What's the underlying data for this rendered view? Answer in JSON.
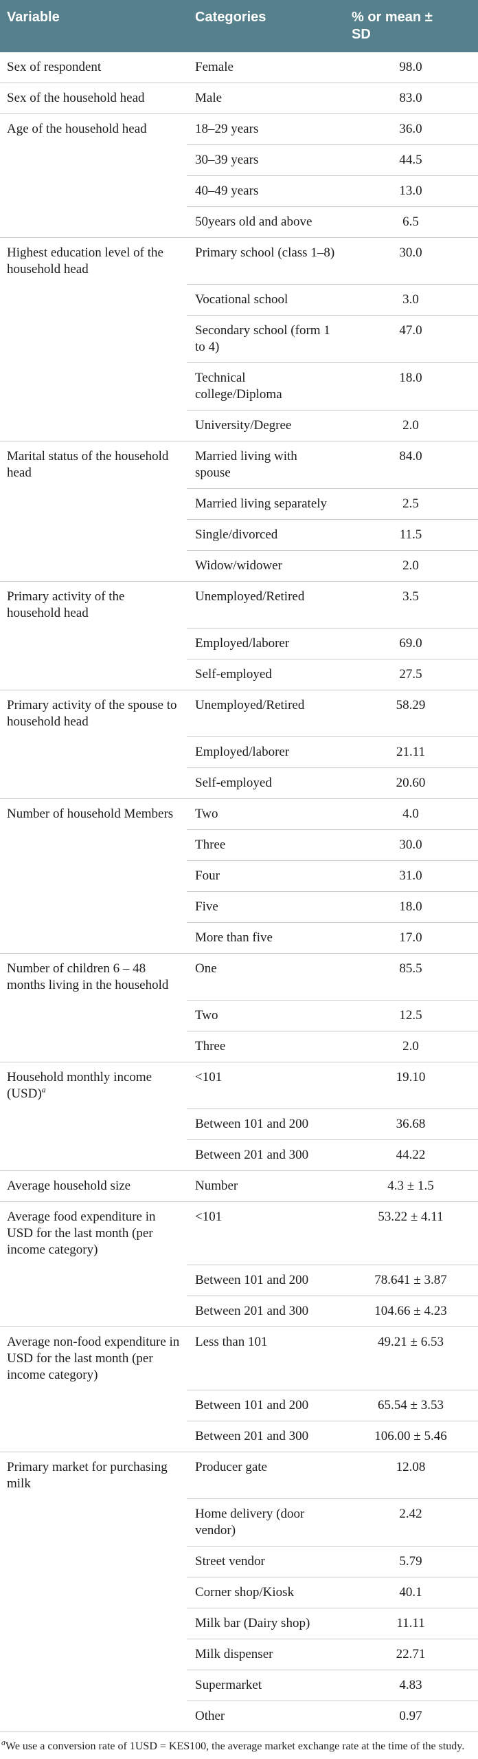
{
  "theme": {
    "header_bg": "#55808c",
    "header_text": "#ffffff",
    "border_color": "#c9c9c9",
    "body_text": "#1c1c1c"
  },
  "table": {
    "columns": [
      "Variable",
      "Categories",
      "% or mean ± SD"
    ],
    "groups": [
      {
        "variable": "Sex of respondent",
        "rows": [
          {
            "category": "Female",
            "value": "98.0"
          }
        ]
      },
      {
        "variable": "Sex of the household head",
        "rows": [
          {
            "category": "Male",
            "value": "83.0"
          }
        ]
      },
      {
        "variable": "Age of the household head",
        "rows": [
          {
            "category": "18–29 years",
            "value": "36.0"
          },
          {
            "category": "30–39 years",
            "value": "44.5"
          },
          {
            "category": "40–49 years",
            "value": "13.0"
          },
          {
            "category": "50years old and above",
            "value": "6.5"
          }
        ]
      },
      {
        "variable": "Highest education level of the household head",
        "rows": [
          {
            "category": "Primary school (class 1–8)",
            "value": "30.0"
          },
          {
            "category": "Vocational school",
            "value": "3.0"
          },
          {
            "category": "Secondary school (form 1 to 4)",
            "value": "47.0"
          },
          {
            "category": "Technical college/Diploma",
            "value": "18.0"
          },
          {
            "category": "University/Degree",
            "value": "2.0"
          }
        ]
      },
      {
        "variable": "Marital status of the household head",
        "rows": [
          {
            "category": "Married living with spouse",
            "value": "84.0"
          },
          {
            "category": "Married living separately",
            "value": "2.5"
          },
          {
            "category": "Single/divorced",
            "value": "11.5"
          },
          {
            "category": "Widow/widower",
            "value": "2.0"
          }
        ]
      },
      {
        "variable": "Primary activity of the household head",
        "rows": [
          {
            "category": "Unemployed/Retired",
            "value": "3.5"
          },
          {
            "category": "Employed/laborer",
            "value": "69.0"
          },
          {
            "category": "Self-employed",
            "value": "27.5"
          }
        ]
      },
      {
        "variable": "Primary activity of the spouse to household head",
        "rows": [
          {
            "category": "Unemployed/Retired",
            "value": "58.29"
          },
          {
            "category": "Employed/laborer",
            "value": "21.11"
          },
          {
            "category": "Self-employed",
            "value": "20.60"
          }
        ]
      },
      {
        "variable": "Number of household Members",
        "rows": [
          {
            "category": "Two",
            "value": "4.0"
          },
          {
            "category": "Three",
            "value": "30.0"
          },
          {
            "category": "Four",
            "value": "31.0"
          },
          {
            "category": "Five",
            "value": "18.0"
          },
          {
            "category": "More than five",
            "value": "17.0"
          }
        ]
      },
      {
        "variable": "Number of children 6 – 48 months living in the household",
        "rows": [
          {
            "category": "One",
            "value": "85.5"
          },
          {
            "category": "Two",
            "value": "12.5"
          },
          {
            "category": "Three",
            "value": "2.0"
          }
        ]
      },
      {
        "variable": "Household monthly income (USD)",
        "variable_sup": "a",
        "rows": [
          {
            "category": "<101",
            "value": "19.10"
          },
          {
            "category": "Between 101 and 200",
            "value": "36.68"
          },
          {
            "category": "Between 201 and 300",
            "value": "44.22"
          }
        ]
      },
      {
        "variable": "Average household size",
        "rows": [
          {
            "category": "Number",
            "value": "4.3 ± 1.5"
          }
        ]
      },
      {
        "variable": "Average food expenditure in USD for the last month (per income category)",
        "rows": [
          {
            "category": "<101",
            "value": "53.22 ± 4.11"
          },
          {
            "category": "Between 101 and 200",
            "value": "78.641 ± 3.87"
          },
          {
            "category": "Between 201 and 300",
            "value": "104.66 ± 4.23"
          }
        ]
      },
      {
        "variable": "Average non-food expenditure in USD for the last month (per income category)",
        "rows": [
          {
            "category": "Less than 101",
            "value": "49.21 ± 6.53"
          },
          {
            "category": "Between 101 and 200",
            "value": "65.54 ± 3.53"
          },
          {
            "category": "Between 201 and 300",
            "value": "106.00 ± 5.46"
          }
        ]
      },
      {
        "variable": "Primary market for purchasing milk",
        "rows": [
          {
            "category": "Producer gate",
            "value": "12.08"
          },
          {
            "category": "Home delivery (door vendor)",
            "value": "2.42"
          },
          {
            "category": "Street vendor",
            "value": "5.79"
          },
          {
            "category": "Corner shop/Kiosk",
            "value": "40.1"
          },
          {
            "category": "Milk bar (Dairy shop)",
            "value": "11.11"
          },
          {
            "category": "Milk dispenser",
            "value": "22.71"
          },
          {
            "category": "Supermarket",
            "value": "4.83"
          },
          {
            "category": "Other",
            "value": "0.97"
          }
        ]
      }
    ]
  },
  "footnote": {
    "marker": "a",
    "text": "We use a conversion rate of 1USD = KES100, the average market exchange rate at the time of the study."
  }
}
